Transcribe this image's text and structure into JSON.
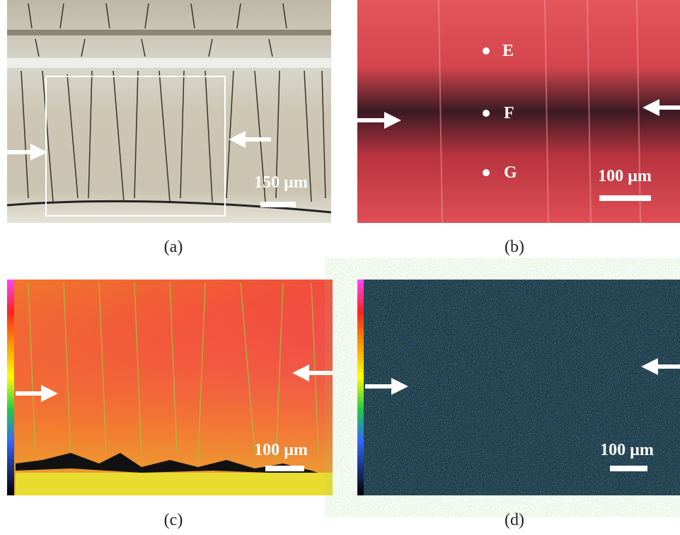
{
  "panels": [
    {
      "label": "(a)",
      "scale_bar": "150 µm"
    },
    {
      "label": "(b)",
      "scale_bar": "100 µm",
      "points": [
        "E",
        "F",
        "G"
      ]
    },
    {
      "label": "(c)",
      "scale_bar": "100 µm"
    },
    {
      "label": "(d)",
      "scale_bar": "100 µm"
    }
  ]
}
